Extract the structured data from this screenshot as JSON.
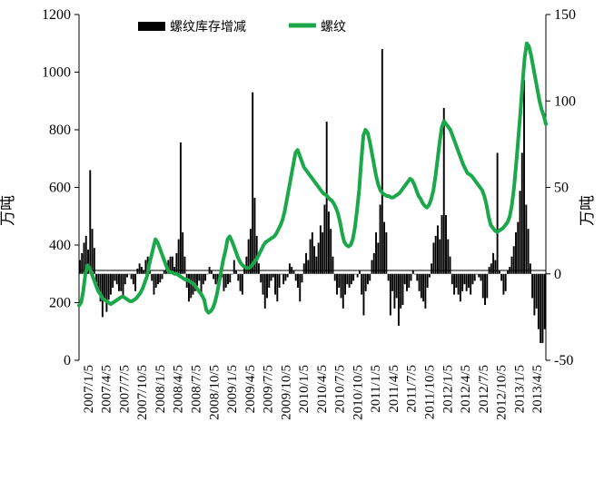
{
  "chart_data": {
    "type": "bar+line",
    "y_left_label": "万吨",
    "y_right_label": "万吨",
    "y_left_range": [
      0,
      1200
    ],
    "y_left_ticks": [
      "0",
      "200",
      "400",
      "600",
      "800",
      "1000",
      "1200"
    ],
    "y_right_range": [
      -50,
      150
    ],
    "y_right_ticks": [
      "-50",
      "0",
      "50",
      "100",
      "150"
    ],
    "x_tick_labels": [
      "2007/1/5",
      "2007/4/5",
      "2007/7/5",
      "2007/10/5",
      "2008/1/5",
      "2008/4/5",
      "2008/7/5",
      "2008/10/5",
      "2009/1/5",
      "2009/4/5",
      "2009/7/5",
      "2009/10/5",
      "2010/1/5",
      "2010/4/5",
      "2010/7/5",
      "2010/10/5",
      "2011/1/5",
      "2011/4/5",
      "2011/7/5",
      "2011/10/5",
      "2012/1/5",
      "2012/4/5",
      "2012/7/5",
      "2012/10/5",
      "2013/1/5",
      "2013/4/5"
    ],
    "legend": [
      {
        "name": "螺纹库存增减",
        "color": "#000000",
        "kind": "bar"
      },
      {
        "name": "螺纹",
        "color": "#1aa84a",
        "kind": "line"
      }
    ],
    "series": [
      {
        "name": "螺纹库存增减",
        "axis": "right",
        "note": "weekly change, approximate",
        "values": [
          8,
          12,
          18,
          22,
          14,
          60,
          26,
          15,
          -5,
          -10,
          -16,
          -25,
          -15,
          -22,
          -15,
          -12,
          -8,
          -4,
          -6,
          -10,
          -10,
          -14,
          -6,
          -2,
          0,
          -3,
          -6,
          -10,
          3,
          6,
          4,
          2,
          8,
          10,
          2,
          -4,
          -12,
          -8,
          -6,
          -5,
          -3,
          2,
          6,
          8,
          10,
          10,
          4,
          12,
          20,
          76,
          24,
          10,
          -8,
          -16,
          -14,
          -12,
          -10,
          -7,
          -4,
          -12,
          -6,
          -4,
          0,
          4,
          2,
          -3,
          -6,
          -8,
          -3,
          -2,
          -10,
          -8,
          -6,
          -5,
          0,
          8,
          2,
          -4,
          -10,
          -12,
          4,
          10,
          20,
          26,
          105,
          44,
          22,
          6,
          -5,
          -12,
          -20,
          -14,
          -8,
          -4,
          -2,
          -12,
          -16,
          -8,
          0,
          -6,
          -4,
          -2,
          6,
          4,
          2,
          -4,
          -8,
          -16,
          -5,
          6,
          12,
          8,
          20,
          24,
          16,
          10,
          18,
          28,
          24,
          40,
          88,
          36,
          26,
          10,
          -4,
          -12,
          -8,
          -14,
          -20,
          -12,
          -6,
          -8,
          -6,
          -4,
          0,
          -2,
          2,
          -12,
          -24,
          -10,
          -6,
          -4,
          8,
          12,
          24,
          18,
          40,
          130,
          30,
          24,
          -4,
          -24,
          -10,
          -20,
          -14,
          -30,
          -20,
          -18,
          -6,
          -10,
          -8,
          -4,
          2,
          0,
          -4,
          -10,
          -14,
          -16,
          -20,
          -8,
          -2,
          6,
          18,
          22,
          28,
          20,
          34,
          96,
          34,
          20,
          10,
          -6,
          -12,
          -8,
          -12,
          -16,
          -10,
          -6,
          -10,
          -8,
          -12,
          -6,
          -4,
          0,
          -2,
          -4,
          -14,
          -18,
          -14,
          4,
          6,
          12,
          8,
          70,
          2,
          -4,
          -12,
          -10,
          2,
          4,
          10,
          16,
          24,
          30,
          48,
          70,
          112,
          40,
          26,
          6,
          -14,
          -24,
          -20,
          -32,
          -40,
          -40,
          -32
        ]
      },
      {
        "name": "螺纹",
        "axis": "left",
        "note": "inventory level, approximate",
        "values": [
          190,
          200,
          240,
          300,
          330,
          320,
          300,
          280,
          260,
          240,
          230,
          215,
          210,
          205,
          200,
          195,
          200,
          205,
          210,
          215,
          220,
          220,
          215,
          210,
          205,
          205,
          210,
          215,
          225,
          235,
          250,
          270,
          290,
          330,
          360,
          390,
          420,
          410,
          390,
          370,
          350,
          330,
          310,
          305,
          305,
          300,
          300,
          295,
          290,
          285,
          280,
          280,
          275,
          270,
          265,
          255,
          245,
          235,
          225,
          210,
          175,
          165,
          170,
          180,
          200,
          230,
          270,
          310,
          350,
          380,
          420,
          430,
          415,
          395,
          375,
          355,
          340,
          330,
          325,
          320,
          320,
          325,
          335,
          345,
          355,
          370,
          385,
          400,
          410,
          415,
          420,
          425,
          430,
          440,
          455,
          470,
          490,
          520,
          560,
          600,
          640,
          680,
          720,
          730,
          710,
          690,
          670,
          660,
          650,
          640,
          630,
          620,
          610,
          600,
          590,
          580,
          575,
          570,
          560,
          555,
          545,
          530,
          510,
          480,
          440,
          410,
          400,
          395,
          400,
          420,
          460,
          520,
          590,
          690,
          780,
          800,
          790,
          760,
          720,
          680,
          640,
          610,
          590,
          580,
          575,
          570,
          570,
          565,
          565,
          570,
          575,
          580,
          590,
          600,
          610,
          620,
          630,
          625,
          610,
          590,
          570,
          560,
          545,
          535,
          530,
          540,
          560,
          590,
          640,
          700,
          760,
          810,
          830,
          820,
          810,
          800,
          780,
          760,
          740,
          720,
          700,
          680,
          665,
          650,
          645,
          640,
          630,
          620,
          610,
          600,
          590,
          570,
          540,
          500,
          470,
          460,
          450,
          445,
          450,
          455,
          460,
          470,
          480,
          500,
          540,
          600,
          680,
          770,
          860,
          960,
          1050,
          1100,
          1090,
          1060,
          1020,
          980,
          940,
          900,
          870,
          850,
          820
        ]
      }
    ]
  }
}
